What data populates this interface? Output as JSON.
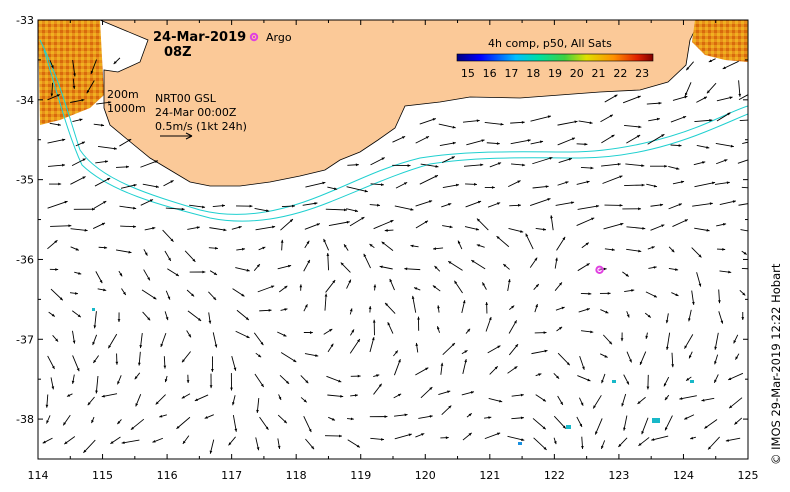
{
  "map": {
    "date": "24-Mar-2019",
    "time": "08Z",
    "argo_label": "Argo",
    "colorbar": {
      "title": "4h comp, p50, All Sats",
      "ticks": [
        "15",
        "16",
        "17",
        "18",
        "19",
        "20",
        "21",
        "22",
        "23"
      ],
      "min": 14.5,
      "max": 23.5
    },
    "contours": {
      "c200": "200m",
      "c1000": "1000m"
    },
    "vector_info": {
      "line1": "NRT00 GSL",
      "line2": "24-Mar 00:00Z",
      "line3": "0.5m/s (1kt 24h)"
    },
    "credit": "© IMOS 29-Mar-2019 12:22 Hobart",
    "axes": {
      "lon_min": 114,
      "lon_max": 125,
      "lat_min": -38.5,
      "lat_max": -33,
      "lon_ticks": [
        "114",
        "115",
        "116",
        "117",
        "118",
        "119",
        "120",
        "121",
        "122",
        "123",
        "124",
        "125"
      ],
      "lat_ticks": [
        "-33",
        "-34",
        "-35",
        "-36",
        "-37",
        "-38"
      ]
    },
    "argo_float": {
      "lon": 122.7,
      "lat": -36.13
    },
    "colors": {
      "land": "#fbc998",
      "argo": "#e040e0",
      "contour": "#20d0d0",
      "sst_warm": "#e07a10",
      "sst_cool": "#18b8c8"
    }
  }
}
